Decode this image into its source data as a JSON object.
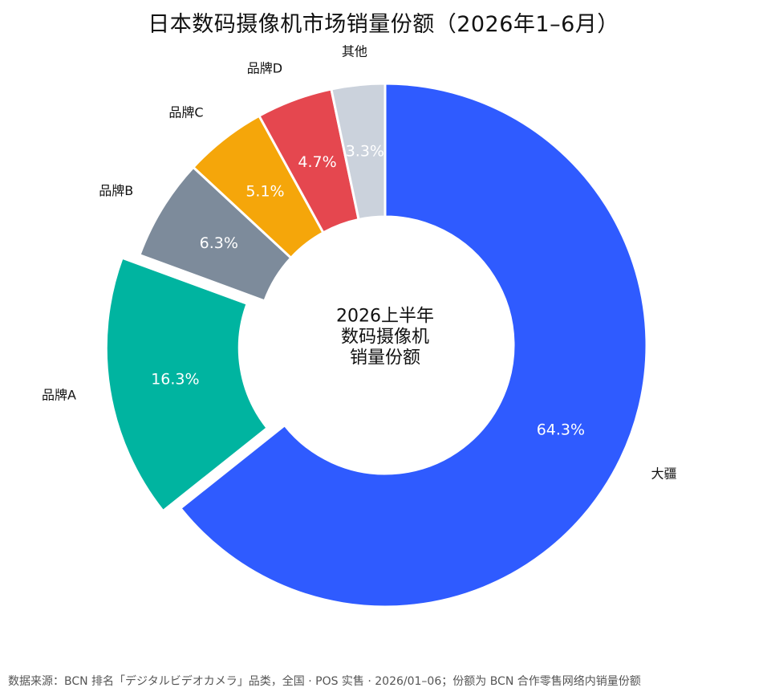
{
  "chart_data": {
    "type": "pie",
    "title": "日本数码摄像机市场销量份额（2026年1–6月）",
    "center_label": [
      "2026上半年",
      "数码摄像机",
      "销量份额"
    ],
    "categories": [
      "大疆",
      "品牌A",
      "品牌B",
      "品牌C",
      "品牌D",
      "其他"
    ],
    "values": [
      64.3,
      16.3,
      6.3,
      5.1,
      4.7,
      3.3
    ],
    "value_labels": [
      "64.3%",
      "16.3%",
      "6.3%",
      "5.1%",
      "4.7%",
      "3.3%"
    ],
    "colors": [
      "#2F5BFF",
      "#00B4A0",
      "#7D8B9B",
      "#F5A60A",
      "#E5474F",
      "#CBD2DC"
    ],
    "label_colors": [
      "#ffffff",
      "#ffffff",
      "#ffffff",
      "#ffffff",
      "#ffffff",
      "#ffffff"
    ],
    "exploded": [
      "品牌A"
    ],
    "donut": true,
    "legend": "none"
  },
  "source_note": "数据来源：BCN 排名「デジタルビデオカメラ」品类，全国 · POS 实售 · 2026/01–06；份额为 BCN 合作零售网络内销量份额"
}
